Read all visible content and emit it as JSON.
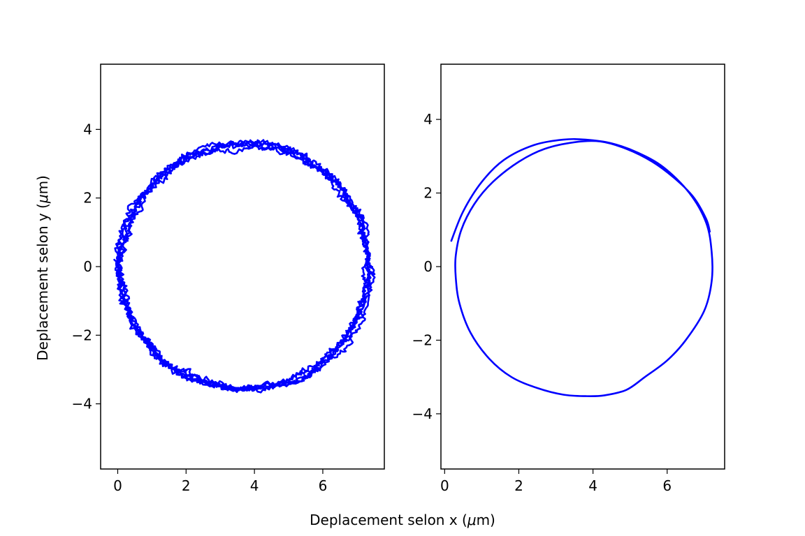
{
  "figure": {
    "xlabel_main": "Deplacement selon x (",
    "xlabel_mu": "μ",
    "xlabel_tail": "m)",
    "ylabel_main": "Deplacement selon y (",
    "ylabel_mu": "μ",
    "ylabel_tail": "m)"
  },
  "chart_data": [
    {
      "type": "line",
      "title": "",
      "xlabel": "",
      "ylabel": "Deplacement selon y (μm)",
      "xlim": [
        -0.5,
        7.8
      ],
      "ylim": [
        -5.9,
        5.9
      ],
      "xticks": [
        0,
        2,
        4,
        6
      ],
      "yticks": [
        -4,
        -2,
        0,
        2,
        4
      ],
      "xtick_labels": [
        "0",
        "2",
        "4",
        "6"
      ],
      "ytick_labels": [
        "−4",
        "−2",
        "0",
        "2",
        "4"
      ],
      "grid": false,
      "color": "#0000ff",
      "trajectory": {
        "description_shape": "noisy circle",
        "center": [
          3.7,
          0.0
        ],
        "radius": 3.65,
        "noise_amplitude": 0.12,
        "revolutions": 5
      }
    },
    {
      "type": "line",
      "title": "",
      "xlabel": "",
      "ylabel": "",
      "xlim": [
        -0.1,
        7.55
      ],
      "ylim": [
        -5.5,
        5.5
      ],
      "xticks": [
        0,
        2,
        4,
        6
      ],
      "yticks": [
        -4,
        -2,
        0,
        2,
        4
      ],
      "xtick_labels": [
        "0",
        "2",
        "4",
        "6"
      ],
      "ytick_labels": [
        "−4",
        "−2",
        "0",
        "2",
        "4"
      ],
      "grid": false,
      "color": "#0000ff",
      "trajectory": {
        "points": [
          [
            0.18,
            0.7
          ],
          [
            0.5,
            1.5
          ],
          [
            1.0,
            2.3
          ],
          [
            1.6,
            2.9
          ],
          [
            2.4,
            3.3
          ],
          [
            3.2,
            3.45
          ],
          [
            3.8,
            3.45
          ],
          [
            4.5,
            3.35
          ],
          [
            5.2,
            3.1
          ],
          [
            5.9,
            2.7
          ],
          [
            6.6,
            2.0
          ],
          [
            7.05,
            1.2
          ],
          [
            7.2,
            0.4
          ],
          [
            7.2,
            -0.4
          ],
          [
            7.0,
            -1.2
          ],
          [
            6.5,
            -2.0
          ],
          [
            6.0,
            -2.55
          ],
          [
            5.4,
            -3.0
          ],
          [
            4.9,
            -3.35
          ],
          [
            4.3,
            -3.5
          ],
          [
            3.8,
            -3.52
          ],
          [
            3.2,
            -3.48
          ],
          [
            2.5,
            -3.3
          ],
          [
            1.8,
            -3.0
          ],
          [
            1.2,
            -2.5
          ],
          [
            0.7,
            -1.8
          ],
          [
            0.4,
            -1.0
          ],
          [
            0.3,
            -0.3
          ],
          [
            0.3,
            0.3
          ],
          [
            0.45,
            1.0
          ],
          [
            0.8,
            1.7
          ],
          [
            1.3,
            2.3
          ],
          [
            2.0,
            2.85
          ],
          [
            2.7,
            3.2
          ],
          [
            3.5,
            3.38
          ],
          [
            4.2,
            3.4
          ],
          [
            4.9,
            3.2
          ],
          [
            5.6,
            2.85
          ],
          [
            6.2,
            2.4
          ],
          [
            6.7,
            1.9
          ],
          [
            7.05,
            1.3
          ],
          [
            7.15,
            0.95
          ]
        ]
      }
    }
  ]
}
